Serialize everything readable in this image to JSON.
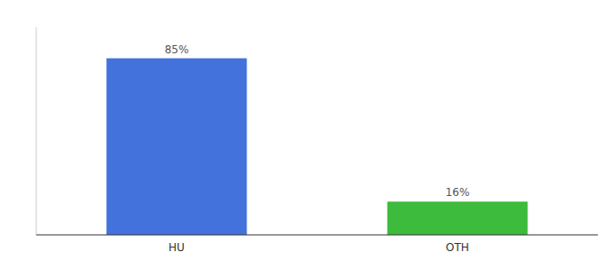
{
  "chart_data": {
    "type": "bar",
    "categories": [
      "HU",
      "OTH"
    ],
    "values": [
      85,
      16
    ],
    "value_labels": [
      "85%",
      "16%"
    ],
    "colors": [
      "#4472DD",
      "#3DBB3D"
    ],
    "ylim": [
      0,
      100
    ],
    "data_labels": true,
    "tick_labels": "x"
  }
}
